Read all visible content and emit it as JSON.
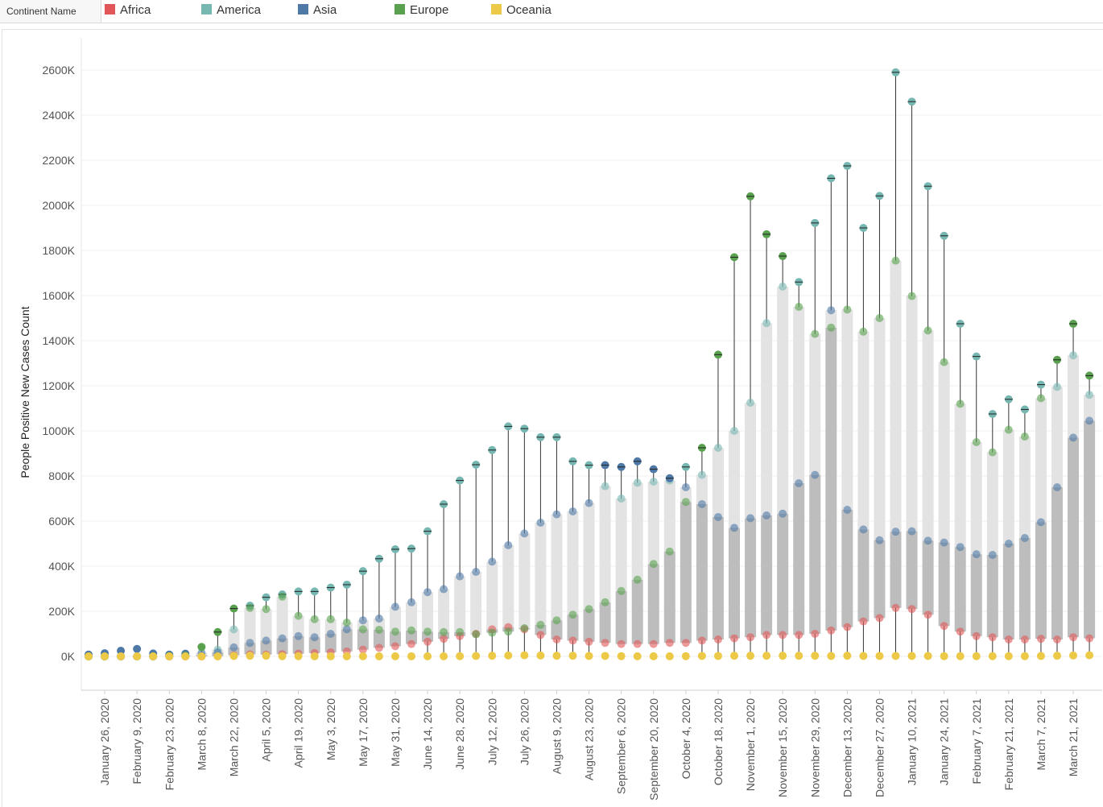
{
  "legend": {
    "title": "Continent Name",
    "items": [
      {
        "label": "Africa",
        "color": "#e15759"
      },
      {
        "label": "America",
        "color": "#76b7b2"
      },
      {
        "label": "Asia",
        "color": "#4e79a7"
      },
      {
        "label": "Europe",
        "color": "#59a14f"
      },
      {
        "label": "Oceania",
        "color": "#edc948"
      }
    ]
  },
  "chart_data": {
    "type": "scatter",
    "subtype": "dumbbell-range (weekly min-max range bars with dots per continent)",
    "ylabel": "People Positive New Cases Count",
    "xlabel": "",
    "ylim": [
      -120000,
      2700000
    ],
    "y_ticks": [
      0,
      200000,
      400000,
      600000,
      800000,
      1000000,
      1200000,
      1400000,
      1600000,
      1800000,
      2000000,
      2200000,
      2400000,
      2600000
    ],
    "y_tick_labels": [
      "0K",
      "200K",
      "400K",
      "600K",
      "800K",
      "1000K",
      "1200K",
      "1400K",
      "1600K",
      "1800K",
      "2000K",
      "2200K",
      "2400K",
      "2600K"
    ],
    "x_tick_labels": [
      "January 26, 2020",
      "February 9, 2020",
      "February 23, 2020",
      "March 8, 2020",
      "March 22, 2020",
      "April 5, 2020",
      "April 19, 2020",
      "May 3, 2020",
      "May 17, 2020",
      "May 31, 2020",
      "June 14, 2020",
      "June 28, 2020",
      "July 12, 2020",
      "July 26, 2020",
      "August 9, 2020",
      "August 23, 2020",
      "September 6, 2020",
      "September 20, 2020",
      "October 4, 2020",
      "October 18, 2020",
      "November 1, 2020",
      "November 15, 2020",
      "November 29, 2020",
      "December 13, 2020",
      "December 27, 2020",
      "January 10, 2021",
      "January 24, 2021",
      "February 7, 2021",
      "February 21, 2021",
      "March 7, 2021",
      "March 21, 2021"
    ],
    "grid": true,
    "legend_position": "top",
    "series_order": [
      "Africa",
      "America",
      "Asia",
      "Europe",
      "Oceania"
    ],
    "weeks": [
      {
        "week": "January 19, 2020",
        "values": [
          0,
          0,
          8000,
          0,
          0
        ]
      },
      {
        "week": "January 26, 2020",
        "values": [
          0,
          0,
          14000,
          0,
          0
        ]
      },
      {
        "week": "February 2, 2020",
        "values": [
          0,
          0,
          25000,
          0,
          0
        ]
      },
      {
        "week": "February 9, 2020",
        "values": [
          0,
          0,
          33000,
          0,
          0
        ]
      },
      {
        "week": "February 16, 2020",
        "values": [
          0,
          0,
          13000,
          0,
          0
        ]
      },
      {
        "week": "February 23, 2020",
        "values": [
          0,
          0,
          8000,
          2000,
          0
        ]
      },
      {
        "week": "March 1, 2020",
        "values": [
          0,
          1000,
          12000,
          5000,
          0
        ]
      },
      {
        "week": "March 8, 2020",
        "values": [
          0,
          5000,
          16000,
          42000,
          0
        ]
      },
      {
        "week": "March 15, 2020",
        "values": [
          1000,
          30000,
          18000,
          108000,
          0
        ]
      },
      {
        "week": "March 22, 2020",
        "values": [
          5000,
          120000,
          40000,
          212000,
          2000
        ]
      },
      {
        "week": "March 29, 2020",
        "values": [
          9000,
          225000,
          60000,
          215000,
          3000
        ]
      },
      {
        "week": "April 5, 2020",
        "values": [
          8000,
          262000,
          70000,
          210000,
          3000
        ]
      },
      {
        "week": "April 12, 2020",
        "values": [
          10000,
          275000,
          80000,
          265000,
          1000
        ]
      },
      {
        "week": "April 19, 2020",
        "values": [
          12000,
          288000,
          90000,
          180000,
          1000
        ]
      },
      {
        "week": "April 26, 2020",
        "values": [
          15000,
          288000,
          85000,
          165000,
          500
        ]
      },
      {
        "week": "May 3, 2020",
        "values": [
          18000,
          305000,
          100000,
          165000,
          500
        ]
      },
      {
        "week": "May 10, 2020",
        "values": [
          22000,
          318000,
          120000,
          150000,
          500
        ]
      },
      {
        "week": "May 17, 2020",
        "values": [
          30000,
          378000,
          160000,
          120000,
          500
        ]
      },
      {
        "week": "May 24, 2020",
        "values": [
          38000,
          433000,
          168000,
          118000,
          500
        ]
      },
      {
        "week": "May 31, 2020",
        "values": [
          45000,
          475000,
          220000,
          110000,
          500
        ]
      },
      {
        "week": "June 7, 2020",
        "values": [
          55000,
          478000,
          240000,
          115000,
          500
        ]
      },
      {
        "week": "June 14, 2020",
        "values": [
          65000,
          555000,
          285000,
          110000,
          500
        ]
      },
      {
        "week": "June 21, 2020",
        "values": [
          78000,
          675000,
          298000,
          108000,
          500
        ]
      },
      {
        "week": "June 28, 2020",
        "values": [
          90000,
          780000,
          355000,
          108000,
          1000
        ]
      },
      {
        "week": "July 5, 2020",
        "values": [
          100000,
          850000,
          375000,
          98000,
          2000
        ]
      },
      {
        "week": "July 12, 2020",
        "values": [
          120000,
          915000,
          420000,
          105000,
          3000
        ]
      },
      {
        "week": "July 19, 2020",
        "values": [
          130000,
          1020000,
          493000,
          110000,
          4000
        ]
      },
      {
        "week": "July 26, 2020",
        "values": [
          120000,
          1010000,
          545000,
          125000,
          5000
        ]
      },
      {
        "week": "August 2, 2020",
        "values": [
          95000,
          972000,
          593000,
          140000,
          4000
        ]
      },
      {
        "week": "August 9, 2020",
        "values": [
          75000,
          972000,
          630000,
          160000,
          3000
        ]
      },
      {
        "week": "August 16, 2020",
        "values": [
          70000,
          865000,
          643000,
          185000,
          3000
        ]
      },
      {
        "week": "August 23, 2020",
        "values": [
          65000,
          848000,
          680000,
          210000,
          2000
        ]
      },
      {
        "week": "August 30, 2020",
        "values": [
          60000,
          755000,
          848000,
          240000,
          2000
        ]
      },
      {
        "week": "September 6, 2020",
        "values": [
          55000,
          700000,
          840000,
          290000,
          1000
        ]
      },
      {
        "week": "September 13, 2020",
        "values": [
          55000,
          770000,
          865000,
          340000,
          500
        ]
      },
      {
        "week": "September 20, 2020",
        "values": [
          55000,
          775000,
          830000,
          410000,
          500
        ]
      },
      {
        "week": "September 27, 2020",
        "values": [
          60000,
          780000,
          790000,
          465000,
          500
        ]
      },
      {
        "week": "October 4, 2020",
        "values": [
          60000,
          840000,
          750000,
          685000,
          1000
        ]
      },
      {
        "week": "October 11, 2020",
        "values": [
          70000,
          805000,
          675000,
          925000,
          2000
        ]
      },
      {
        "week": "October 18, 2020",
        "values": [
          75000,
          925000,
          618000,
          1338000,
          2000
        ]
      },
      {
        "week": "October 25, 2020",
        "values": [
          80000,
          1000000,
          570000,
          1770000,
          3000
        ]
      },
      {
        "week": "November 1, 2020",
        "values": [
          85000,
          1125000,
          613000,
          2040000,
          3000
        ]
      },
      {
        "week": "November 8, 2020",
        "values": [
          95000,
          1478000,
          625000,
          1872000,
          3000
        ]
      },
      {
        "week": "November 15, 2020",
        "values": [
          95000,
          1640000,
          633000,
          1775000,
          3000
        ]
      },
      {
        "week": "November 22, 2020",
        "values": [
          95000,
          1660000,
          768000,
          1550000,
          3000
        ]
      },
      {
        "week": "November 29, 2020",
        "values": [
          100000,
          1922000,
          805000,
          1430000,
          3000
        ]
      },
      {
        "week": "December 6, 2020",
        "values": [
          115000,
          2120000,
          1535000,
          1458000,
          2000
        ]
      },
      {
        "week": "December 13, 2020",
        "values": [
          130000,
          2175000,
          650000,
          1538000,
          3000
        ]
      },
      {
        "week": "December 20, 2020",
        "values": [
          155000,
          1900000,
          563000,
          1440000,
          2000
        ]
      },
      {
        "week": "December 27, 2020",
        "values": [
          170000,
          2042000,
          515000,
          1500000,
          2000
        ]
      },
      {
        "week": "January 3, 2021",
        "values": [
          215000,
          2590000,
          553000,
          1755000,
          2000
        ]
      },
      {
        "week": "January 10, 2021",
        "values": [
          210000,
          2460000,
          555000,
          1598000,
          2000
        ]
      },
      {
        "week": "January 17, 2021",
        "values": [
          185000,
          2085000,
          513000,
          1445000,
          2000
        ]
      },
      {
        "week": "January 24, 2021",
        "values": [
          135000,
          1865000,
          505000,
          1305000,
          1000
        ]
      },
      {
        "week": "January 31, 2021",
        "values": [
          110000,
          1475000,
          485000,
          1120000,
          1000
        ]
      },
      {
        "week": "February 7, 2021",
        "values": [
          90000,
          1330000,
          453000,
          950000,
          1000
        ]
      },
      {
        "week": "February 14, 2021",
        "values": [
          85000,
          1075000,
          450000,
          905000,
          1000
        ]
      },
      {
        "week": "February 21, 2021",
        "values": [
          75000,
          1140000,
          500000,
          1005000,
          1000
        ]
      },
      {
        "week": "February 28, 2021",
        "values": [
          75000,
          1095000,
          525000,
          975000,
          1000
        ]
      },
      {
        "week": "March 7, 2021",
        "values": [
          78000,
          1205000,
          595000,
          1145000,
          2000
        ]
      },
      {
        "week": "March 14, 2021",
        "values": [
          75000,
          1195000,
          750000,
          1315000,
          3000
        ]
      },
      {
        "week": "March 21, 2021",
        "values": [
          85000,
          1335000,
          970000,
          1475000,
          4000
        ]
      },
      {
        "week": "March 28, 2021",
        "values": [
          80000,
          1160000,
          1045000,
          1245000,
          5000
        ]
      }
    ]
  }
}
